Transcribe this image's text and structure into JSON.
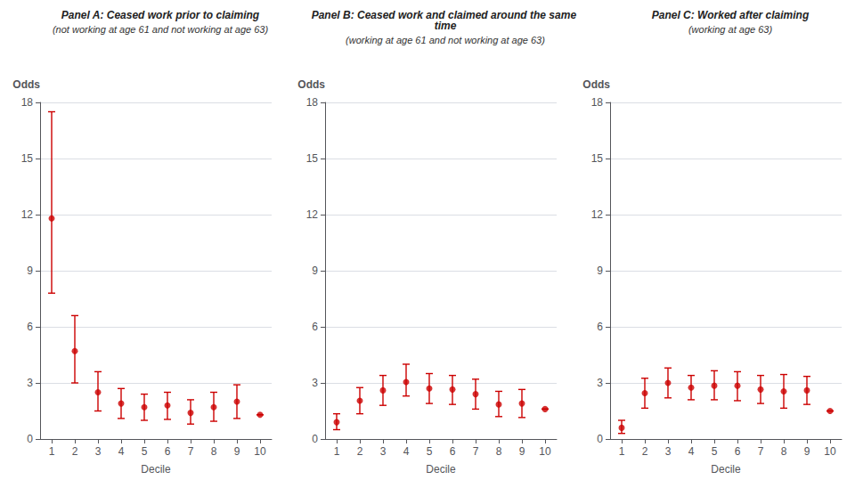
{
  "chart_data": [
    {
      "type": "scatter",
      "title": "Panel A: Ceased work prior to claiming",
      "subtitle": "(not working at age 61 and not working at age 63)",
      "xlabel": "Decile",
      "ylabel": "Odds",
      "x": [
        1,
        2,
        3,
        4,
        5,
        6,
        7,
        8,
        9,
        10
      ],
      "values": [
        11.8,
        4.7,
        2.5,
        1.9,
        1.7,
        1.8,
        1.4,
        1.7,
        2.0,
        1.3
      ],
      "lo": [
        7.8,
        3.0,
        1.5,
        1.1,
        1.0,
        1.05,
        0.8,
        0.95,
        1.1,
        1.3
      ],
      "hi": [
        17.5,
        6.6,
        3.6,
        2.7,
        2.4,
        2.5,
        2.1,
        2.5,
        2.9,
        1.3
      ],
      "color": "#cc0000",
      "marker": "circle",
      "xlim": [
        0.5,
        10.5
      ],
      "xticks": [
        1,
        2,
        3,
        4,
        5,
        6,
        7,
        8,
        9,
        10
      ],
      "ylim": [
        0,
        18
      ],
      "yticks": [
        0,
        3,
        6,
        9,
        12,
        15,
        18
      ],
      "grid": "y"
    },
    {
      "type": "scatter",
      "title": "Panel B: Ceased work and claimed around the same time",
      "subtitle": "(working at age 61 and not working at age 63)",
      "xlabel": "Decile",
      "ylabel": "Odds",
      "x": [
        1,
        2,
        3,
        4,
        5,
        6,
        7,
        8,
        9,
        10
      ],
      "values": [
        0.9,
        2.05,
        2.6,
        3.05,
        2.7,
        2.65,
        2.4,
        1.85,
        1.9,
        1.6
      ],
      "lo": [
        0.5,
        1.35,
        1.8,
        2.3,
        1.9,
        1.85,
        1.6,
        1.2,
        1.15,
        1.6
      ],
      "hi": [
        1.35,
        2.75,
        3.4,
        4.0,
        3.5,
        3.4,
        3.2,
        2.55,
        2.65,
        1.6
      ],
      "color": "#cc0000",
      "marker": "circle",
      "xlim": [
        0.5,
        10.5
      ],
      "xticks": [
        1,
        2,
        3,
        4,
        5,
        6,
        7,
        8,
        9,
        10
      ],
      "ylim": [
        0,
        18
      ],
      "yticks": [
        0,
        3,
        6,
        9,
        12,
        15,
        18
      ],
      "grid": "y"
    },
    {
      "type": "scatter",
      "title": "Panel C: Worked after claiming",
      "subtitle": "(working at age 63)",
      "xlabel": "Decile",
      "ylabel": "Odds",
      "x": [
        1,
        2,
        3,
        4,
        5,
        6,
        7,
        8,
        9,
        10
      ],
      "values": [
        0.6,
        2.45,
        3.0,
        2.75,
        2.85,
        2.85,
        2.65,
        2.55,
        2.6,
        1.5
      ],
      "lo": [
        0.3,
        1.65,
        2.2,
        2.1,
        2.1,
        2.05,
        1.9,
        1.65,
        1.85,
        1.5
      ],
      "hi": [
        1.0,
        3.25,
        3.8,
        3.4,
        3.65,
        3.6,
        3.4,
        3.45,
        3.35,
        1.5
      ],
      "color": "#cc0000",
      "marker": "circle",
      "xlim": [
        0.5,
        10.5
      ],
      "xticks": [
        1,
        2,
        3,
        4,
        5,
        6,
        7,
        8,
        9,
        10
      ],
      "ylim": [
        0,
        18
      ],
      "yticks": [
        0,
        3,
        6,
        9,
        12,
        15,
        18
      ],
      "grid": "y"
    }
  ]
}
